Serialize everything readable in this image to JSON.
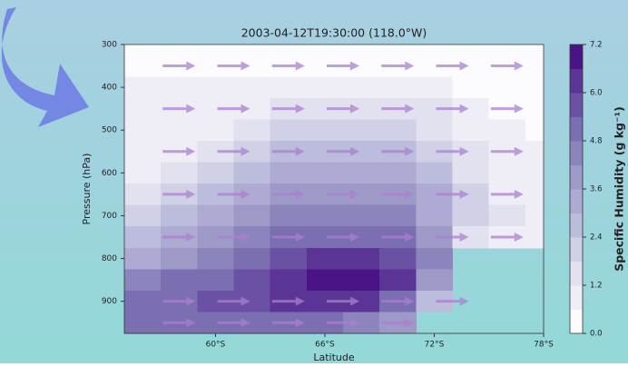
{
  "chart_data": {
    "type": "contour",
    "title": "2003-04-12T19:30:00 (118.0°W)",
    "x_label": "Latitude",
    "y_label": "Pressure (hPa)",
    "colorbar_label": "Specific Humidity (g kg⁻¹)",
    "xlim": [
      -55,
      -78
    ],
    "xticks": [
      {
        "value": -60,
        "label": "60°S"
      },
      {
        "value": -66,
        "label": "66°S"
      },
      {
        "value": -72,
        "label": "72°S"
      },
      {
        "value": -78,
        "label": "78°S"
      }
    ],
    "ylim": [
      975,
      300
    ],
    "yticks": [
      300,
      400,
      500,
      600,
      700,
      800,
      900
    ],
    "levels": [
      0,
      0.6,
      1.2,
      1.8,
      2.4,
      3.0,
      3.6,
      4.2,
      4.8,
      5.4,
      6.0,
      6.6,
      7.2
    ],
    "colors": [
      "#fcfbfd",
      "#efedf5",
      "#e2e1ef",
      "#d0d1e6",
      "#bcbddc",
      "#aeaad3",
      "#9e9ac8",
      "#8c84bd",
      "#7b6eb1",
      "#6a51a3",
      "#5b3596",
      "#4a1486"
    ],
    "cticks": [
      {
        "value": 0,
        "label": "0.0"
      },
      1.2,
      2.4,
      3.6,
      4.8,
      {
        "value": 6,
        "label": "6.0"
      },
      7.2
    ],
    "field": {
      "x": [
        -56,
        -58,
        -60,
        -62,
        -64,
        -66,
        -68,
        -70,
        -72,
        -74,
        -76,
        -78
      ],
      "y": [
        300,
        350,
        400,
        450,
        500,
        550,
        600,
        650,
        700,
        750,
        800,
        850,
        900,
        950
      ],
      "z": [
        [
          0.3,
          0.2,
          0.2,
          0.1,
          0.1,
          0.1,
          0.1,
          0.1,
          0.1,
          0.1,
          0,
          0
        ],
        [
          0.4,
          0.4,
          0.3,
          0.4,
          0.4,
          0.4,
          0.4,
          0.4,
          0.3,
          0.2,
          0.1,
          0.1
        ],
        [
          0.6,
          0.6,
          0.6,
          0.8,
          0.9,
          1.0,
          1.0,
          0.9,
          0.8,
          0.5,
          0.3,
          0.2
        ],
        [
          0.6,
          0.7,
          0.8,
          1.1,
          1.4,
          1.5,
          1.6,
          1.5,
          1.3,
          0.8,
          0.5,
          0.3
        ],
        [
          0.6,
          0.8,
          1.0,
          1.5,
          1.9,
          2.1,
          2.2,
          2.0,
          1.6,
          1.0,
          0.7,
          0.4
        ],
        [
          0.7,
          1.0,
          1.3,
          1.9,
          2.4,
          2.7,
          2.8,
          2.5,
          2.0,
          1.3,
          0.9,
          0.6
        ],
        [
          0.8,
          1.3,
          1.8,
          2.4,
          3.0,
          3.3,
          3.4,
          3.0,
          2.5,
          1.6,
          1.0,
          0.7
        ],
        [
          1.2,
          1.8,
          2.4,
          3.0,
          3.6,
          3.9,
          4.0,
          3.6,
          3.0,
          1.8,
          1.1,
          0.8
        ],
        [
          1.8,
          2.4,
          3.0,
          3.6,
          4.2,
          4.5,
          4.6,
          4.2,
          3.4,
          1.8,
          1.2,
          0.9
        ],
        [
          2.6,
          3.1,
          3.6,
          4.2,
          4.8,
          5.1,
          5.3,
          4.8,
          3.8,
          1.5,
          1.0,
          0.8
        ],
        [
          3.5,
          4.0,
          4.5,
          5.1,
          5.7,
          6.2,
          6.4,
          5.6,
          4.2,
          null,
          null,
          null
        ],
        [
          4.2,
          4.8,
          5.3,
          5.9,
          6.4,
          7.0,
          7.1,
          6.2,
          4.0,
          null,
          null,
          null
        ],
        [
          4.8,
          5.2,
          5.6,
          5.8,
          6.0,
          6.1,
          6.0,
          5.0,
          2.8,
          null,
          null,
          null
        ],
        [
          4.8,
          4.9,
          5.0,
          5.0,
          5.0,
          4.8,
          4.5,
          3.8,
          null,
          null,
          null,
          null
        ]
      ]
    },
    "quiver": {
      "x": [
        -58,
        -61,
        -64,
        -67,
        -70,
        -73,
        -76
      ],
      "y": [
        350,
        450,
        550,
        650,
        750,
        900,
        950
      ],
      "color": "#a97fcf"
    }
  }
}
